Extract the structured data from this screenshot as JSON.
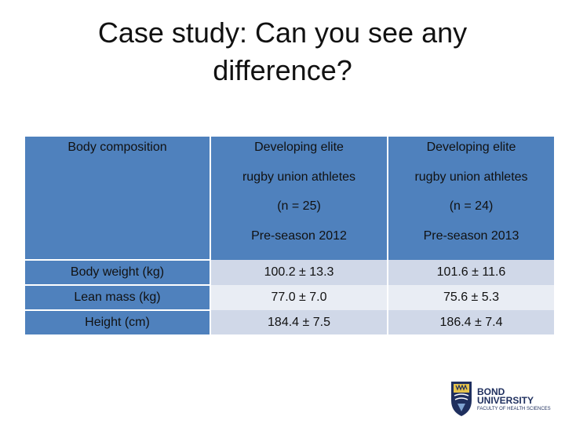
{
  "title": {
    "line1": "Case study: Can you see any",
    "line2": "difference?"
  },
  "table": {
    "header": {
      "col1": "Body composition",
      "col2": [
        "Developing elite",
        "rugby union athletes",
        "(n = 25)",
        "Pre-season 2012"
      ],
      "col3": [
        "Developing elite",
        "rugby union athletes",
        "(n = 24)",
        "Pre-season 2013"
      ]
    },
    "rows": [
      {
        "label": "Body weight (kg)",
        "v2012": "100.2 ± 13.3",
        "v2013": "101.6 ± 11.6"
      },
      {
        "label": "Lean mass (kg)",
        "v2012": "77.0 ± 7.0",
        "v2013": "75.6 ± 5.3"
      },
      {
        "label": "Height (cm)",
        "v2012": "184.4 ± 7.5",
        "v2013": "186.4 ± 7.4"
      }
    ]
  },
  "logo": {
    "line1": "BOND",
    "line2": "UNIVERSITY",
    "sub": "FACULTY OF HEALTH SCIENCES",
    "icon": "bond-university-crest-icon"
  },
  "colors": {
    "header_blue": "#4f81bd",
    "row_odd": "#d0d8e8",
    "row_even": "#e9edf4",
    "crest_blue": "#1f2f5e"
  }
}
